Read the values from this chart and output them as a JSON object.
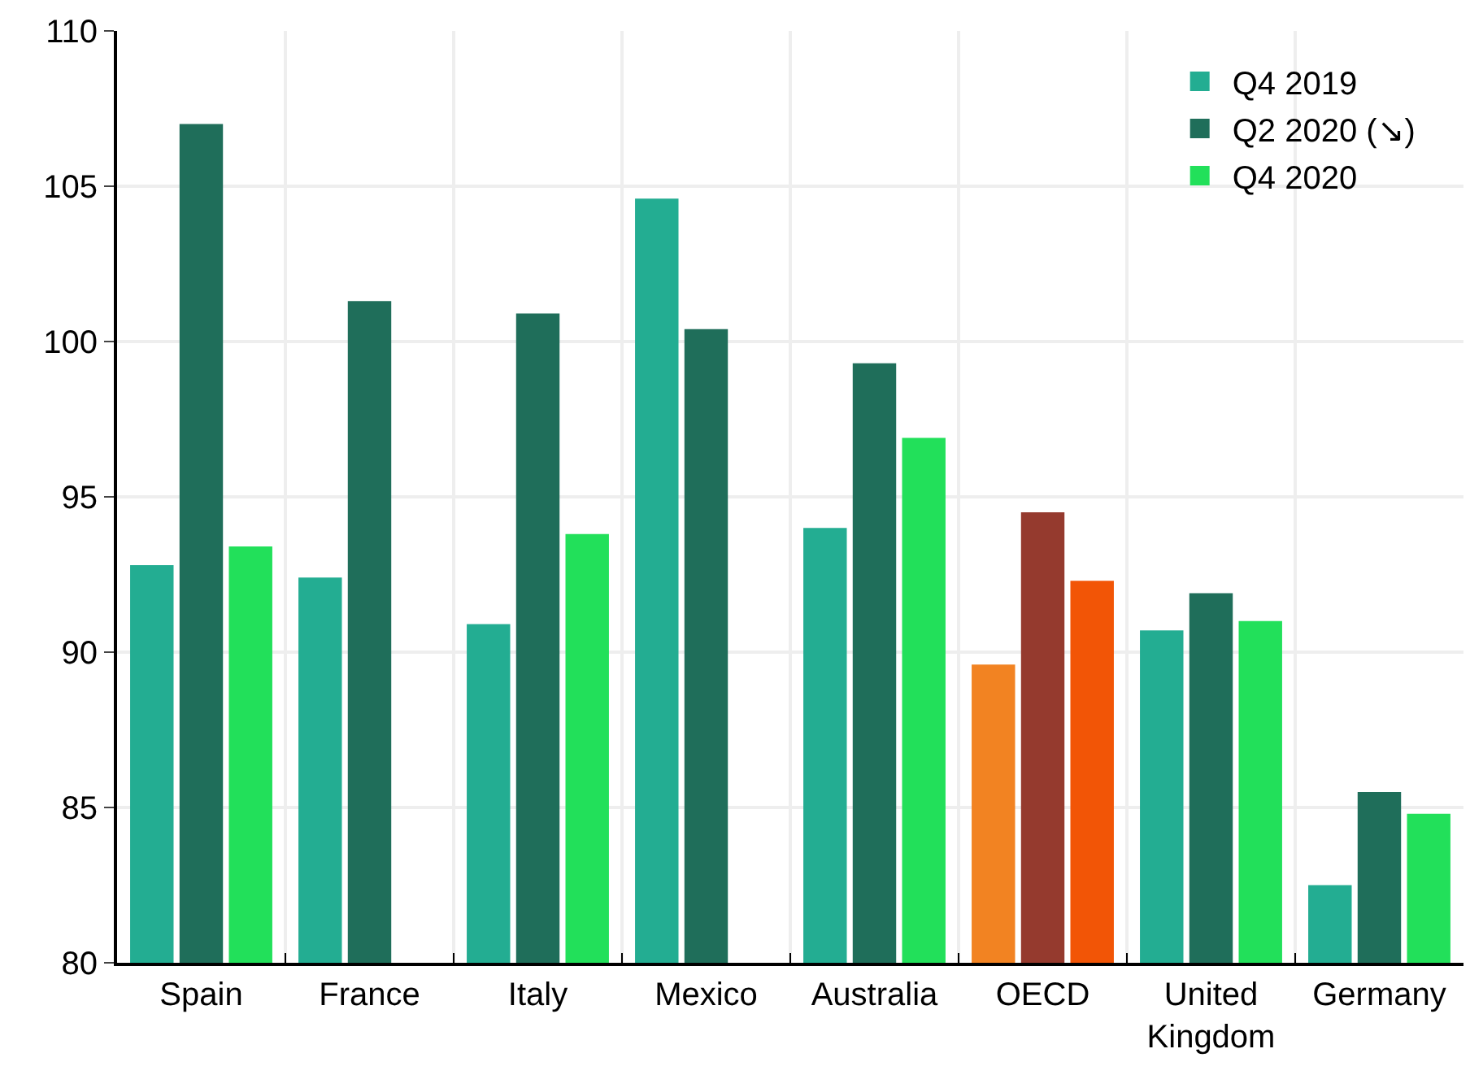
{
  "chart_data": {
    "type": "bar",
    "categories": [
      "Spain",
      "France",
      "Italy",
      "Mexico",
      "Australia",
      "OECD",
      "United Kingdom",
      "Germany"
    ],
    "series": [
      {
        "name": "Q4 2019",
        "color": "#23ad92",
        "colors": [
          null,
          null,
          null,
          null,
          null,
          "#f28322",
          null,
          null
        ],
        "values": [
          92.8,
          92.4,
          90.9,
          104.6,
          94.0,
          89.6,
          90.7,
          82.5
        ]
      },
      {
        "name": "Q2 2020 (↘)",
        "color": "#1f6e5a",
        "colors": [
          null,
          null,
          null,
          null,
          null,
          "#953a2e",
          null,
          null
        ],
        "values": [
          107.0,
          101.3,
          100.9,
          100.4,
          99.3,
          94.5,
          91.9,
          85.5
        ]
      },
      {
        "name": "Q4 2020",
        "color": "#22e05a",
        "colors": [
          null,
          null,
          null,
          null,
          null,
          "#f25506",
          null,
          null
        ],
        "values": [
          93.4,
          null,
          93.8,
          null,
          96.9,
          92.3,
          91.0,
          84.8
        ]
      }
    ],
    "ylim": [
      80,
      110
    ],
    "yticks": [
      80,
      85,
      90,
      95,
      100,
      105,
      110
    ],
    "grid": true,
    "legend": "top right"
  }
}
